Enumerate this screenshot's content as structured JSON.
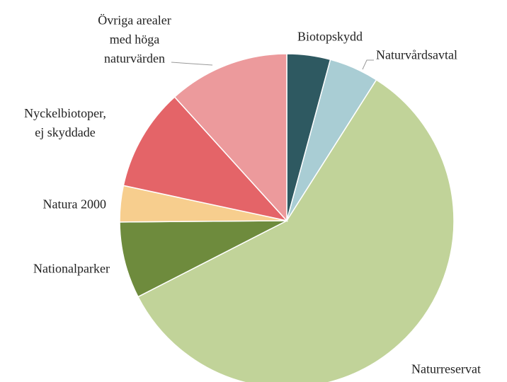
{
  "chart_data": {
    "type": "pie",
    "categories": [
      "Biotopskydd",
      "Naturvårdsavtal",
      "Naturreservat",
      "Nationalparker",
      "Natura 2000",
      "Nyckelbiotoper,\nej skyddade",
      "Övriga arealer\nmed höga\nnaturvärden"
    ],
    "values": [
      4.2,
      4.8,
      58.4,
      7.4,
      3.5,
      9.9,
      11.7
    ],
    "colors": [
      "#2e5961",
      "#a9cdd4",
      "#c1d399",
      "#6e8b3d",
      "#f7ce8e",
      "#e46468",
      "#ec9a9c"
    ]
  }
}
